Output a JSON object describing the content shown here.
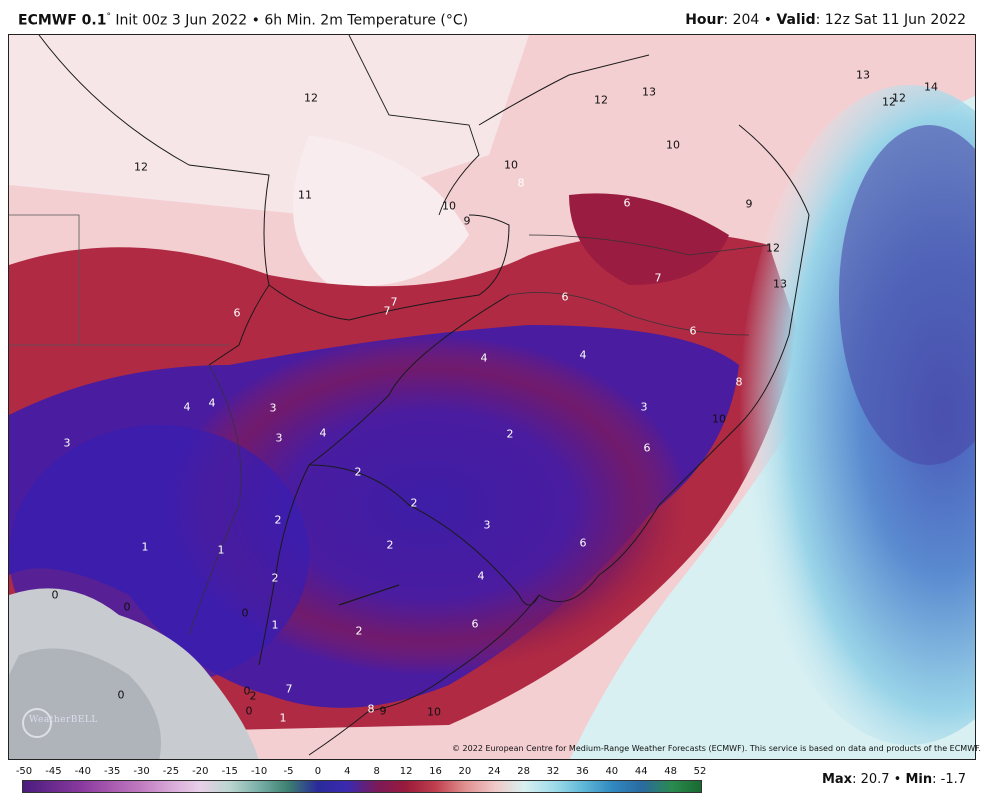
{
  "header": {
    "model": "ECMWF 0.1",
    "degree": "°",
    "init": " Init 00z 3 Jun 2022 • 6h Min. 2m Temperature (°C)",
    "hour_label": "Hour",
    "hour_value": ": 204 • ",
    "valid_label": "Valid",
    "valid_value": ": 12z Sat 11 Jun 2022"
  },
  "map": {
    "copyright": "© 2022 European Centre for Medium-Range Weather Forecasts (ECMWF). This service is based on data and products of the ECMWF.",
    "logo": "WeatherBELL",
    "labels": [
      {
        "text": "12",
        "color": "dark"
      },
      {
        "text": "12",
        "color": "dark"
      },
      {
        "text": "12",
        "color": "dark"
      },
      {
        "text": "13",
        "color": "dark"
      },
      {
        "text": "13",
        "color": "dark"
      },
      {
        "text": "12",
        "color": "dark"
      },
      {
        "text": "12",
        "color": "dark"
      },
      {
        "text": "14",
        "color": "dark"
      },
      {
        "text": "10",
        "color": "dark"
      },
      {
        "text": "10",
        "color": "dark"
      },
      {
        "text": "8",
        "color": "light"
      },
      {
        "text": "10",
        "color": "dark"
      },
      {
        "text": "9",
        "color": "dark"
      },
      {
        "text": "6",
        "color": "light"
      },
      {
        "text": "9",
        "color": "dark"
      },
      {
        "text": "11",
        "color": "dark"
      },
      {
        "text": "7",
        "color": "light"
      },
      {
        "text": "7",
        "color": "light"
      },
      {
        "text": "7",
        "color": "light"
      },
      {
        "text": "6",
        "color": "light"
      },
      {
        "text": "6",
        "color": "light"
      },
      {
        "text": "6",
        "color": "light"
      },
      {
        "text": "4",
        "color": "light"
      },
      {
        "text": "4",
        "color": "light"
      },
      {
        "text": "8",
        "color": "light"
      },
      {
        "text": "4",
        "color": "light"
      },
      {
        "text": "4",
        "color": "light"
      },
      {
        "text": "3",
        "color": "light"
      },
      {
        "text": "3",
        "color": "light"
      },
      {
        "text": "3",
        "color": "light"
      },
      {
        "text": "4",
        "color": "light"
      },
      {
        "text": "2",
        "color": "light"
      },
      {
        "text": "3",
        "color": "light"
      },
      {
        "text": "10",
        "color": "dark"
      },
      {
        "text": "6",
        "color": "light"
      },
      {
        "text": "2",
        "color": "light"
      },
      {
        "text": "2",
        "color": "light"
      },
      {
        "text": "3",
        "color": "light"
      },
      {
        "text": "2",
        "color": "light"
      },
      {
        "text": "1",
        "color": "light"
      },
      {
        "text": "1",
        "color": "light"
      },
      {
        "text": "2",
        "color": "light"
      },
      {
        "text": "6",
        "color": "light"
      },
      {
        "text": "2",
        "color": "light"
      },
      {
        "text": "4",
        "color": "light"
      },
      {
        "text": "0",
        "color": "dark"
      },
      {
        "text": "0",
        "color": "dark"
      },
      {
        "text": "0",
        "color": "dark"
      },
      {
        "text": "1",
        "color": "light"
      },
      {
        "text": "2",
        "color": "light"
      },
      {
        "text": "6",
        "color": "light"
      },
      {
        "text": "0",
        "color": "dark"
      },
      {
        "text": "0",
        "color": "dark"
      },
      {
        "text": "2",
        "color": "dark"
      },
      {
        "text": "0",
        "color": "dark"
      },
      {
        "text": "7",
        "color": "light"
      },
      {
        "text": "1",
        "color": "light"
      },
      {
        "text": "8",
        "color": "light"
      },
      {
        "text": "9",
        "color": "dark"
      },
      {
        "text": "10",
        "color": "dark"
      },
      {
        "text": "13",
        "color": "dark"
      },
      {
        "text": "12",
        "color": "dark"
      }
    ]
  },
  "scale": {
    "ticks": [
      "-50",
      "-45",
      "-40",
      "-35",
      "-30",
      "-25",
      "-20",
      "-15",
      "-10",
      "-5",
      "0",
      "4",
      "8",
      "12",
      "16",
      "20",
      "24",
      "28",
      "32",
      "36",
      "40",
      "44",
      "48",
      "52"
    ],
    "colors": [
      "#4a1c7e",
      "#6a2a8e",
      "#8a3a9e",
      "#a85ab0",
      "#c07cc0",
      "#d8a8d8",
      "#e8d0e8",
      "#bcd6d0",
      "#7ab0a8",
      "#3c8070",
      "#2a2a9a",
      "#3a2ab0",
      "#7a1a5a",
      "#9a1a3a",
      "#c04050",
      "#e09090",
      "#f0c8c8",
      "#d8f0f0",
      "#a0dcea",
      "#60b8d8",
      "#3088c0",
      "#2a6aa0",
      "#2a8a50",
      "#1a6a30"
    ]
  },
  "stats": {
    "max_label": "Max",
    "max_value": ": 20.7 • ",
    "min_label": "Min",
    "min_value": ": -1.7"
  }
}
